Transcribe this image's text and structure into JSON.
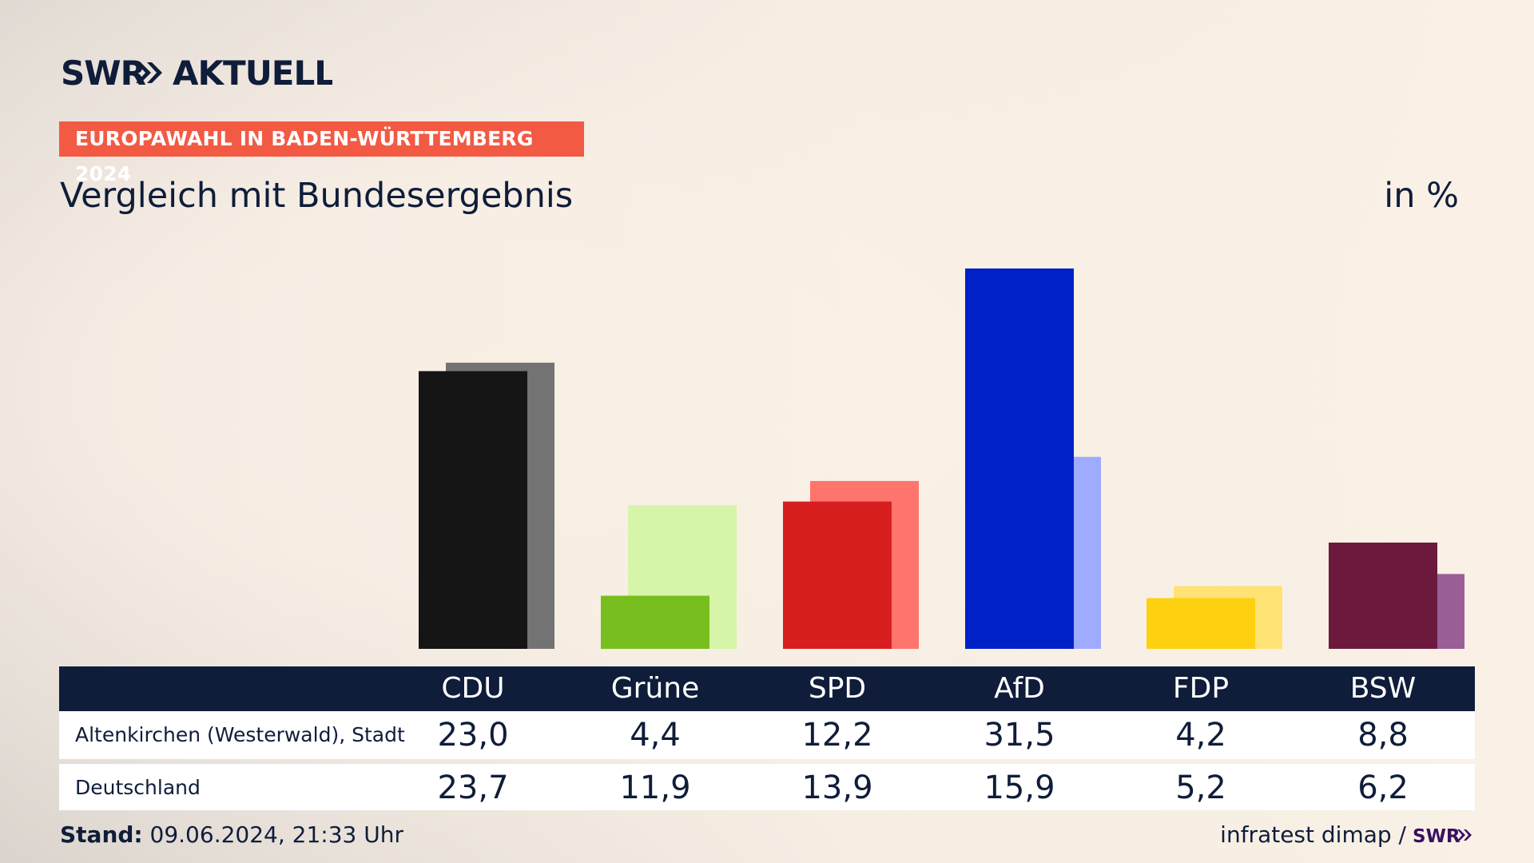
{
  "brand": {
    "logo_text": "SWR» AKTUELL",
    "logo_color": "#0f1d3a"
  },
  "kicker": "EUROPAWAHL IN BADEN-WÜRTTEMBERG 2024",
  "subtitle": "Vergleich mit Bundesergebnis",
  "unit": "in %",
  "table": {
    "row_labels": [
      "Altenkirchen (Westerwald), Stadt",
      "Deutschland"
    ]
  },
  "footer": {
    "stand_label": "Stand:",
    "stand_value": "09.06.2024, 21:33 Uhr",
    "source": "infratest dimap /",
    "source_logo_text": "SWR»"
  },
  "chart_data": {
    "type": "bar",
    "title": "Vergleich mit Bundesergebnis",
    "ylabel": "in %",
    "ylim": [
      0,
      31.5
    ],
    "categories": [
      "CDU",
      "Grüne",
      "SPD",
      "AfD",
      "FDP",
      "BSW"
    ],
    "series": [
      {
        "name": "Altenkirchen (Westerwald), Stadt",
        "values": [
          23.0,
          4.4,
          12.2,
          31.5,
          4.2,
          8.8
        ],
        "labels": [
          "23,0",
          "4,4",
          "12,2",
          "31,5",
          "4,2",
          "8,8"
        ],
        "colors": [
          "#151515",
          "#78be1e",
          "#d71f1f",
          "#0021c8",
          "#fdd10f",
          "#6b1a3e"
        ]
      },
      {
        "name": "Deutschland",
        "values": [
          23.7,
          11.9,
          13.9,
          15.9,
          5.2,
          6.2
        ],
        "labels": [
          "23,7",
          "11,9",
          "13,9",
          "15,9",
          "5,2",
          "6,2"
        ],
        "colors": [
          "#737373",
          "#d6f5a9",
          "#ff746c",
          "#9eabff",
          "#ffe375",
          "#9a5f97"
        ]
      }
    ]
  }
}
